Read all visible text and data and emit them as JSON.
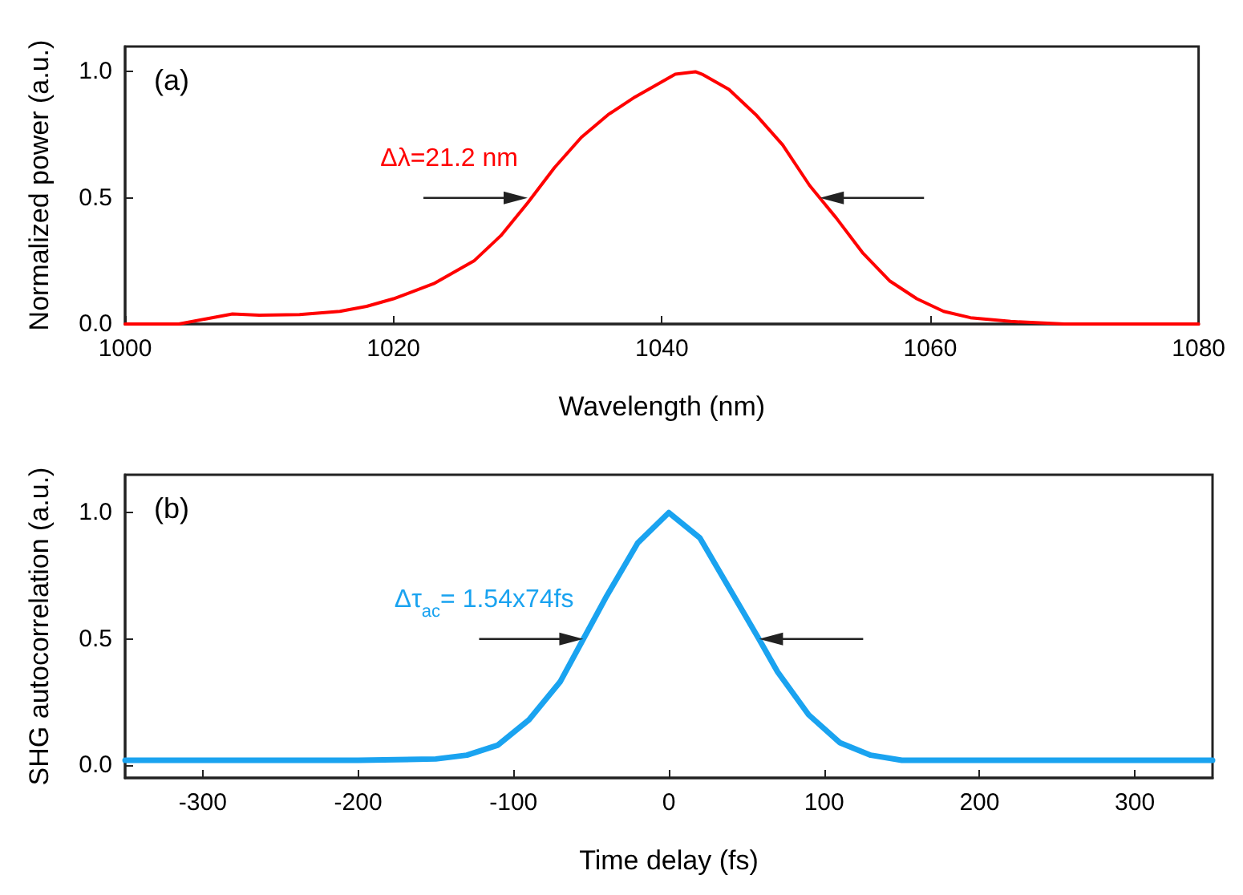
{
  "chart_data": [
    {
      "type": "line",
      "xlabel": "Wavelength (nm)",
      "ylabel": "Normalized power (a.u.)",
      "x": [
        1000,
        1004,
        1006,
        1008,
        1010,
        1013,
        1016,
        1018,
        1020,
        1023,
        1026,
        1028,
        1030,
        1032,
        1034,
        1036,
        1038,
        1040,
        1041,
        1042.5,
        1043,
        1045,
        1047,
        1049,
        1051,
        1053,
        1055,
        1057,
        1059,
        1061,
        1063,
        1066,
        1070,
        1080
      ],
      "series": [
        {
          "color": "#ff0000",
          "values": [
            0,
            0,
            0.02,
            0.04,
            0.035,
            0.037,
            0.05,
            0.07,
            0.1,
            0.16,
            0.25,
            0.35,
            0.48,
            0.62,
            0.74,
            0.83,
            0.9,
            0.96,
            0.99,
            1.0,
            0.99,
            0.93,
            0.83,
            0.71,
            0.55,
            0.42,
            0.28,
            0.17,
            0.1,
            0.05,
            0.025,
            0.01,
            0,
            0
          ]
        }
      ],
      "xlim": [
        1000,
        1080
      ],
      "xticks": [
        1000,
        1020,
        1040,
        1060,
        1080
      ],
      "ylim": [
        0,
        1.1
      ],
      "yticks": [
        {
          "value": 0,
          "label": "0.0"
        },
        {
          "value": 0.5,
          "label": "0.5"
        },
        {
          "value": 1,
          "label": "1.0"
        }
      ],
      "grid": false,
      "marker": "none",
      "line_style": "solid",
      "annotations": [
        "(a)",
        {
          "text": "Δλ=21.2 nm",
          "x": 1030,
          "y": 0.5
        }
      ]
    },
    {
      "type": "line",
      "xlabel": "Time delay (fs)",
      "ylabel": "SHG autocorrelation (a.u.)",
      "x": [
        -350,
        -250,
        -200,
        -150,
        -130,
        -110,
        -90,
        -70,
        -55,
        -40,
        -20,
        0,
        20,
        40,
        58,
        70,
        90,
        110,
        130,
        150,
        250,
        350
      ],
      "series": [
        {
          "color": "#1aa3f0",
          "values": [
            0.02,
            0.02,
            0.02,
            0.025,
            0.04,
            0.08,
            0.18,
            0.33,
            0.5,
            0.67,
            0.88,
            1.0,
            0.9,
            0.69,
            0.5,
            0.37,
            0.2,
            0.09,
            0.04,
            0.02,
            0.02,
            0.02
          ]
        }
      ],
      "xlim": [
        -350,
        350
      ],
      "xticks": [
        -300,
        -200,
        -100,
        0,
        100,
        200,
        300
      ],
      "ylim": [
        -0.05,
        1.15
      ],
      "yticks": [
        {
          "value": 0,
          "label": "0.0"
        },
        {
          "value": 0.5,
          "label": "0.5"
        },
        {
          "value": 1,
          "label": "1.0"
        }
      ],
      "grid": false,
      "marker": "none",
      "line_style": "solid",
      "annotations": [
        "(b)",
        {
          "text": "Δτ$_{ac}$= 1.54x74fs",
          "x": -55,
          "y": 0.5
        }
      ]
    }
  ]
}
